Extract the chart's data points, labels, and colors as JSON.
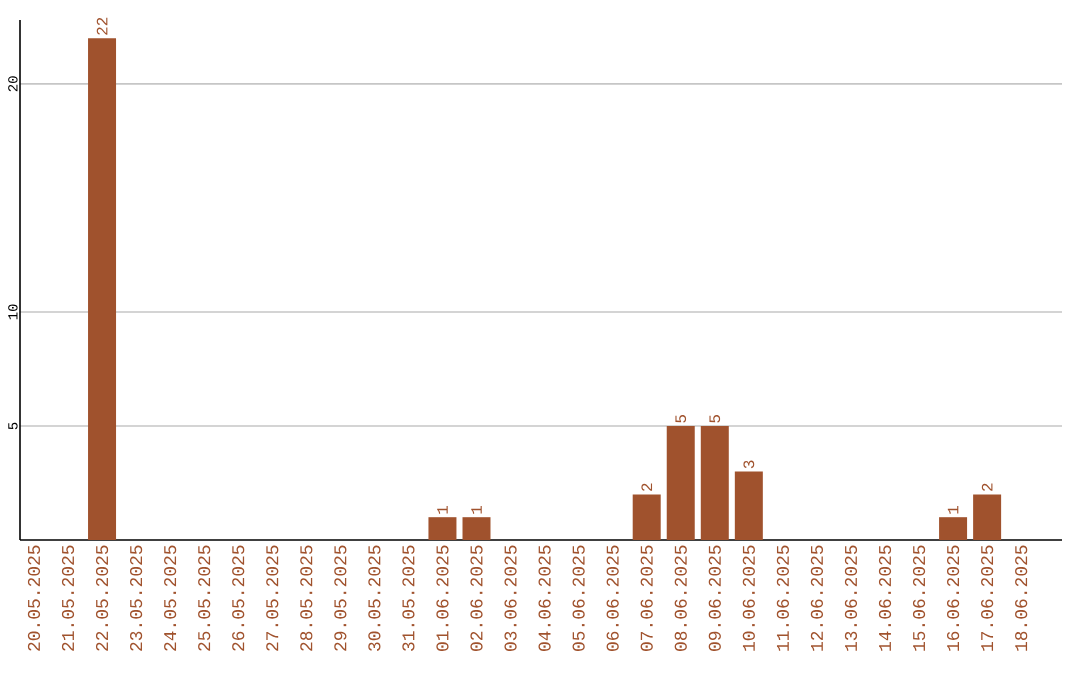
{
  "chart_data": {
    "type": "bar",
    "categories": [
      "20.05.2025",
      "21.05.2025",
      "22.05.2025",
      "23.05.2025",
      "24.05.2025",
      "25.05.2025",
      "26.05.2025",
      "27.05.2025",
      "28.05.2025",
      "29.05.2025",
      "30.05.2025",
      "31.05.2025",
      "01.06.2025",
      "02.06.2025",
      "03.06.2025",
      "04.06.2025",
      "05.06.2025",
      "06.06.2025",
      "07.06.2025",
      "08.06.2025",
      "09.06.2025",
      "10.06.2025",
      "11.06.2025",
      "12.06.2025",
      "13.06.2025",
      "14.06.2025",
      "15.06.2025",
      "16.06.2025",
      "17.06.2025",
      "18.06.2025"
    ],
    "values": [
      0,
      0,
      22,
      0,
      0,
      0,
      0,
      0,
      0,
      0,
      0,
      0,
      1,
      1,
      0,
      0,
      0,
      0,
      2,
      5,
      5,
      3,
      0,
      0,
      0,
      0,
      0,
      1,
      2,
      0
    ],
    "value_labels": [
      null,
      null,
      "22",
      null,
      null,
      null,
      null,
      null,
      null,
      null,
      null,
      null,
      "1",
      "1",
      null,
      null,
      null,
      null,
      "2",
      "5",
      "5",
      "3",
      null,
      null,
      null,
      null,
      null,
      "1",
      "2",
      null
    ],
    "color": "#a0522d",
    "ylim": [
      0,
      22.8
    ],
    "yticks": [
      5,
      10,
      20
    ],
    "grid": "y"
  }
}
